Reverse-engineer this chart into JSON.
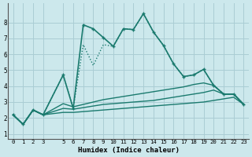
{
  "title": "",
  "xlabel": "Humidex (Indice chaleur)",
  "ylabel": "",
  "bg_color": "#cce8ec",
  "line_color": "#1a7a6e",
  "grid_color": "#aacdd4",
  "x_ticks": [
    0,
    1,
    2,
    3,
    5,
    6,
    7,
    8,
    9,
    10,
    11,
    12,
    13,
    14,
    15,
    16,
    17,
    18,
    19,
    20,
    21,
    22,
    23
  ],
  "xlim": [
    -0.5,
    23.5
  ],
  "ylim": [
    0.7,
    9.2
  ],
  "y_ticks": [
    1,
    2,
    3,
    4,
    5,
    6,
    7,
    8
  ],
  "lines": [
    {
      "x": [
        0,
        1,
        2,
        3,
        5,
        6,
        7,
        8,
        9,
        10,
        11,
        12,
        13,
        14,
        15,
        16,
        17,
        18,
        19,
        20,
        21,
        22,
        23
      ],
      "y": [
        2.2,
        1.6,
        2.5,
        2.2,
        4.7,
        2.6,
        7.85,
        7.6,
        7.05,
        6.5,
        7.6,
        7.55,
        8.55,
        7.4,
        6.55,
        5.4,
        4.6,
        4.7,
        5.05,
        4.05,
        3.5,
        3.5,
        2.85
      ],
      "marker": "+",
      "linestyle": "solid",
      "linewidth": 1.2
    },
    {
      "x": [
        0,
        1,
        2,
        3,
        5,
        6,
        7,
        8,
        9,
        10,
        11,
        12,
        13,
        14,
        15,
        16,
        17,
        18,
        19,
        20,
        21,
        22,
        23
      ],
      "y": [
        2.2,
        1.6,
        2.5,
        2.2,
        4.7,
        2.6,
        6.6,
        5.3,
        6.6,
        6.5,
        7.6,
        7.55,
        8.55,
        7.4,
        6.55,
        5.4,
        4.6,
        4.7,
        5.05,
        4.05,
        3.5,
        3.5,
        2.85
      ],
      "marker": null,
      "linestyle": "dotted",
      "linewidth": 1.0
    },
    {
      "x": [
        0,
        1,
        2,
        3,
        5,
        6,
        7,
        8,
        9,
        10,
        11,
        12,
        13,
        14,
        15,
        16,
        17,
        18,
        19,
        20,
        21,
        22,
        23
      ],
      "y": [
        2.2,
        1.6,
        2.5,
        2.2,
        2.9,
        2.7,
        2.85,
        3.0,
        3.15,
        3.25,
        3.35,
        3.45,
        3.55,
        3.65,
        3.75,
        3.85,
        3.95,
        4.1,
        4.2,
        4.05,
        3.5,
        3.5,
        2.85
      ],
      "marker": null,
      "linestyle": "solid",
      "linewidth": 1.0
    },
    {
      "x": [
        0,
        1,
        2,
        3,
        5,
        6,
        7,
        8,
        9,
        10,
        11,
        12,
        13,
        14,
        15,
        16,
        17,
        18,
        19,
        20,
        21,
        22,
        23
      ],
      "y": [
        2.2,
        1.6,
        2.5,
        2.2,
        2.6,
        2.55,
        2.65,
        2.75,
        2.85,
        2.9,
        2.95,
        3.0,
        3.05,
        3.1,
        3.2,
        3.3,
        3.4,
        3.5,
        3.6,
        3.75,
        3.5,
        3.5,
        2.85
      ],
      "marker": null,
      "linestyle": "solid",
      "linewidth": 1.0
    },
    {
      "x": [
        0,
        1,
        2,
        3,
        5,
        6,
        7,
        8,
        9,
        10,
        11,
        12,
        13,
        14,
        15,
        16,
        17,
        18,
        19,
        20,
        21,
        22,
        23
      ],
      "y": [
        2.2,
        1.6,
        2.5,
        2.2,
        2.35,
        2.35,
        2.4,
        2.45,
        2.5,
        2.55,
        2.6,
        2.65,
        2.7,
        2.75,
        2.8,
        2.85,
        2.9,
        2.95,
        3.0,
        3.1,
        3.2,
        3.3,
        2.85
      ],
      "marker": null,
      "linestyle": "solid",
      "linewidth": 1.0
    }
  ]
}
